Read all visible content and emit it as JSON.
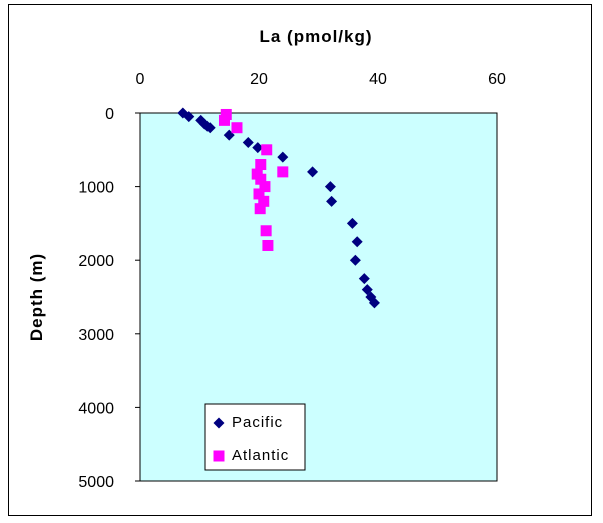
{
  "chart_data": {
    "type": "scatter",
    "title": "",
    "xlabel": "La (pmol/kg)",
    "ylabel": "Depth (m)",
    "xlim": [
      0,
      60
    ],
    "ylim": [
      0,
      5000
    ],
    "y_inverted": true,
    "x_axis_position": "top",
    "x_ticks": [
      "0",
      "20",
      "40",
      "60"
    ],
    "y_ticks": [
      "0",
      "1000",
      "2000",
      "3000",
      "4000",
      "5000"
    ],
    "plot_background": "#ccffff",
    "grid": false,
    "legend_position": "bottom-left",
    "series": [
      {
        "name": "Pacific",
        "marker": "diamond",
        "color": "#000080",
        "points": [
          {
            "x": 7.2,
            "y": 0
          },
          {
            "x": 8.2,
            "y": 50
          },
          {
            "x": 10.2,
            "y": 100
          },
          {
            "x": 10.8,
            "y": 150
          },
          {
            "x": 11.3,
            "y": 180
          },
          {
            "x": 11.8,
            "y": 200
          },
          {
            "x": 15.0,
            "y": 300
          },
          {
            "x": 18.2,
            "y": 400
          },
          {
            "x": 19.8,
            "y": 470
          },
          {
            "x": 24.0,
            "y": 600
          },
          {
            "x": 29.0,
            "y": 800
          },
          {
            "x": 32.0,
            "y": 1000
          },
          {
            "x": 32.2,
            "y": 1200
          },
          {
            "x": 35.7,
            "y": 1500
          },
          {
            "x": 36.5,
            "y": 1750
          },
          {
            "x": 36.2,
            "y": 2000
          },
          {
            "x": 37.7,
            "y": 2250
          },
          {
            "x": 38.2,
            "y": 2400
          },
          {
            "x": 38.8,
            "y": 2500
          },
          {
            "x": 39.4,
            "y": 2580
          }
        ]
      },
      {
        "name": "Atlantic",
        "marker": "square",
        "color": "#ff00ff",
        "points": [
          {
            "x": 14.5,
            "y": 20
          },
          {
            "x": 14.2,
            "y": 100
          },
          {
            "x": 16.3,
            "y": 200
          },
          {
            "x": 21.3,
            "y": 500
          },
          {
            "x": 20.3,
            "y": 700
          },
          {
            "x": 24.0,
            "y": 800
          },
          {
            "x": 19.7,
            "y": 830
          },
          {
            "x": 20.3,
            "y": 900
          },
          {
            "x": 21.0,
            "y": 1000
          },
          {
            "x": 20.0,
            "y": 1100
          },
          {
            "x": 20.8,
            "y": 1200
          },
          {
            "x": 20.2,
            "y": 1300
          },
          {
            "x": 21.2,
            "y": 1600
          },
          {
            "x": 21.5,
            "y": 1800
          }
        ]
      }
    ]
  }
}
